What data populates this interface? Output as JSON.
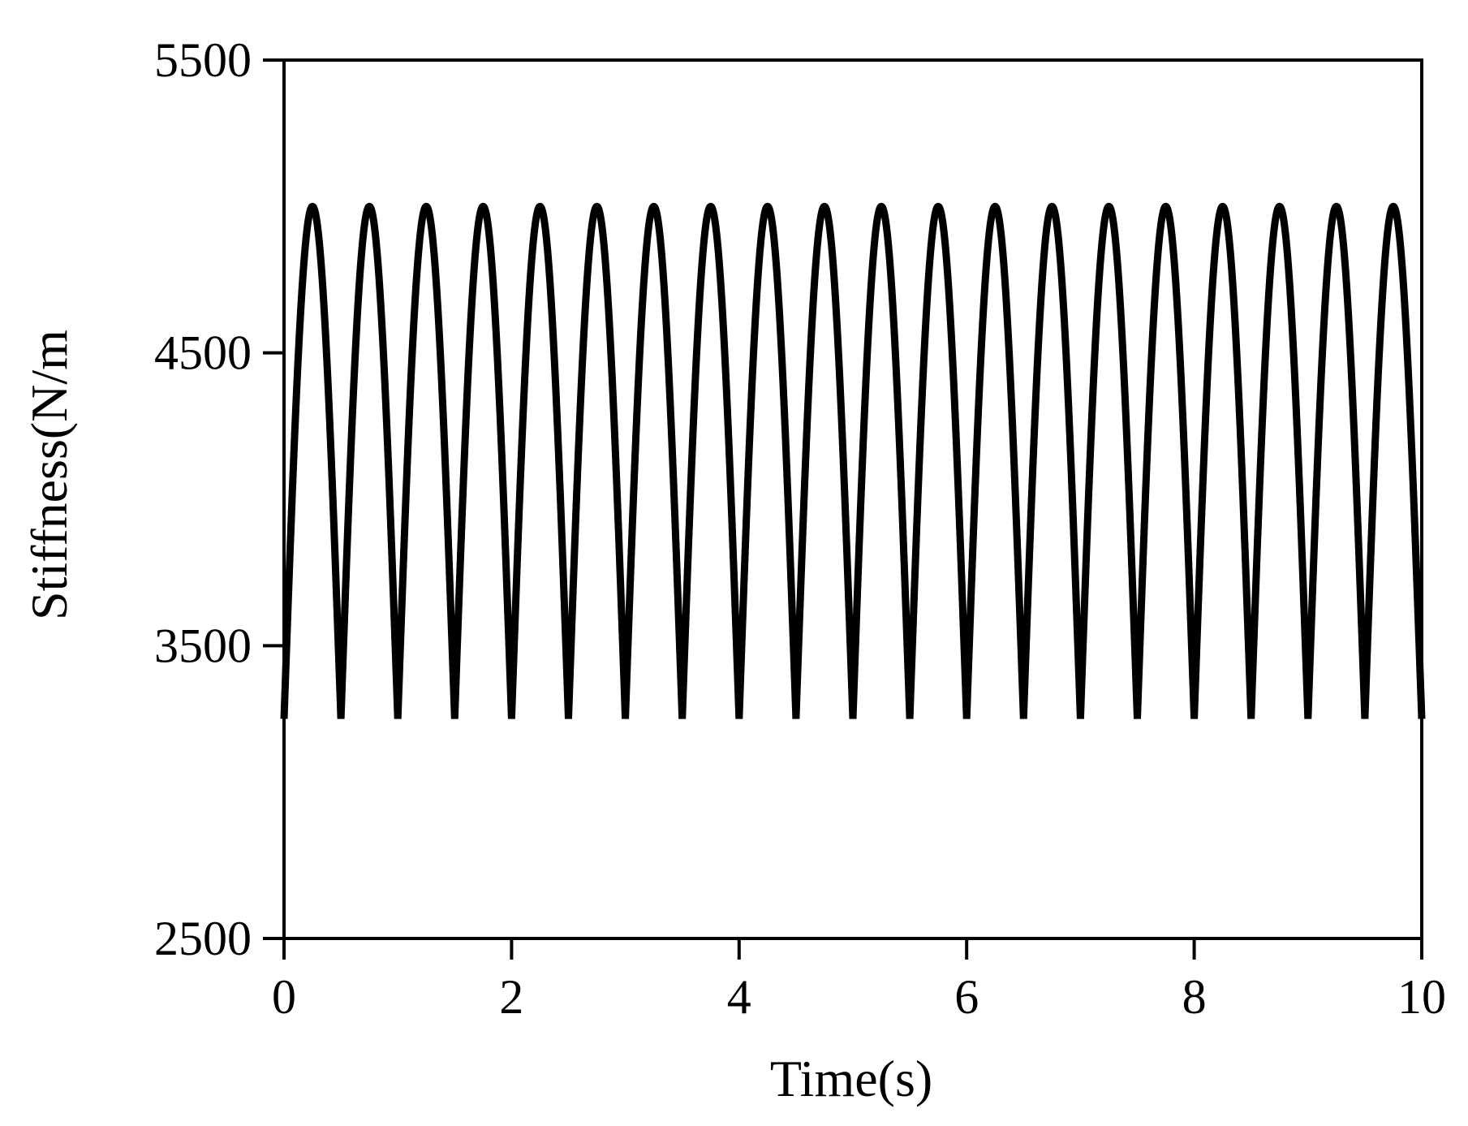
{
  "chart_data": {
    "type": "line",
    "title": "",
    "xlabel": "Time(s)",
    "ylabel": "Stiffness(N/m",
    "xlim": [
      0,
      10
    ],
    "ylim": [
      2500,
      5500
    ],
    "x_ticks": [
      0,
      2,
      4,
      6,
      8,
      10
    ],
    "y_ticks": [
      2500,
      3500,
      4500,
      5500
    ],
    "grid": false,
    "legend": "none",
    "series_color": "#000000",
    "series": [
      {
        "period_s": 0.5,
        "max": 5000,
        "min": 3250,
        "x": [
          0,
          0.25,
          0.5,
          0.75,
          1.0,
          1.25,
          1.5,
          1.75,
          2.0,
          2.25,
          2.5,
          2.75,
          3.0,
          3.25,
          3.5,
          3.75,
          4.0,
          4.25,
          4.5,
          4.75,
          5.0,
          5.25,
          5.5,
          5.75,
          6.0,
          6.25,
          6.5,
          6.75,
          7.0,
          7.25,
          7.5,
          7.75,
          8.0,
          8.25,
          8.5,
          8.75,
          9.0,
          9.25,
          9.5,
          9.75,
          10.0
        ],
        "y": [
          3250,
          5000,
          3250,
          5000,
          3250,
          5000,
          3250,
          5000,
          3250,
          5000,
          3250,
          5000,
          3250,
          5000,
          3250,
          5000,
          3250,
          5000,
          3250,
          5000,
          3250,
          5000,
          3250,
          5000,
          3250,
          5000,
          3250,
          5000,
          3250,
          5000,
          3250,
          5000,
          3250,
          5000,
          3250,
          5000,
          3250,
          5000,
          3250,
          5000,
          3250
        ]
      }
    ]
  }
}
